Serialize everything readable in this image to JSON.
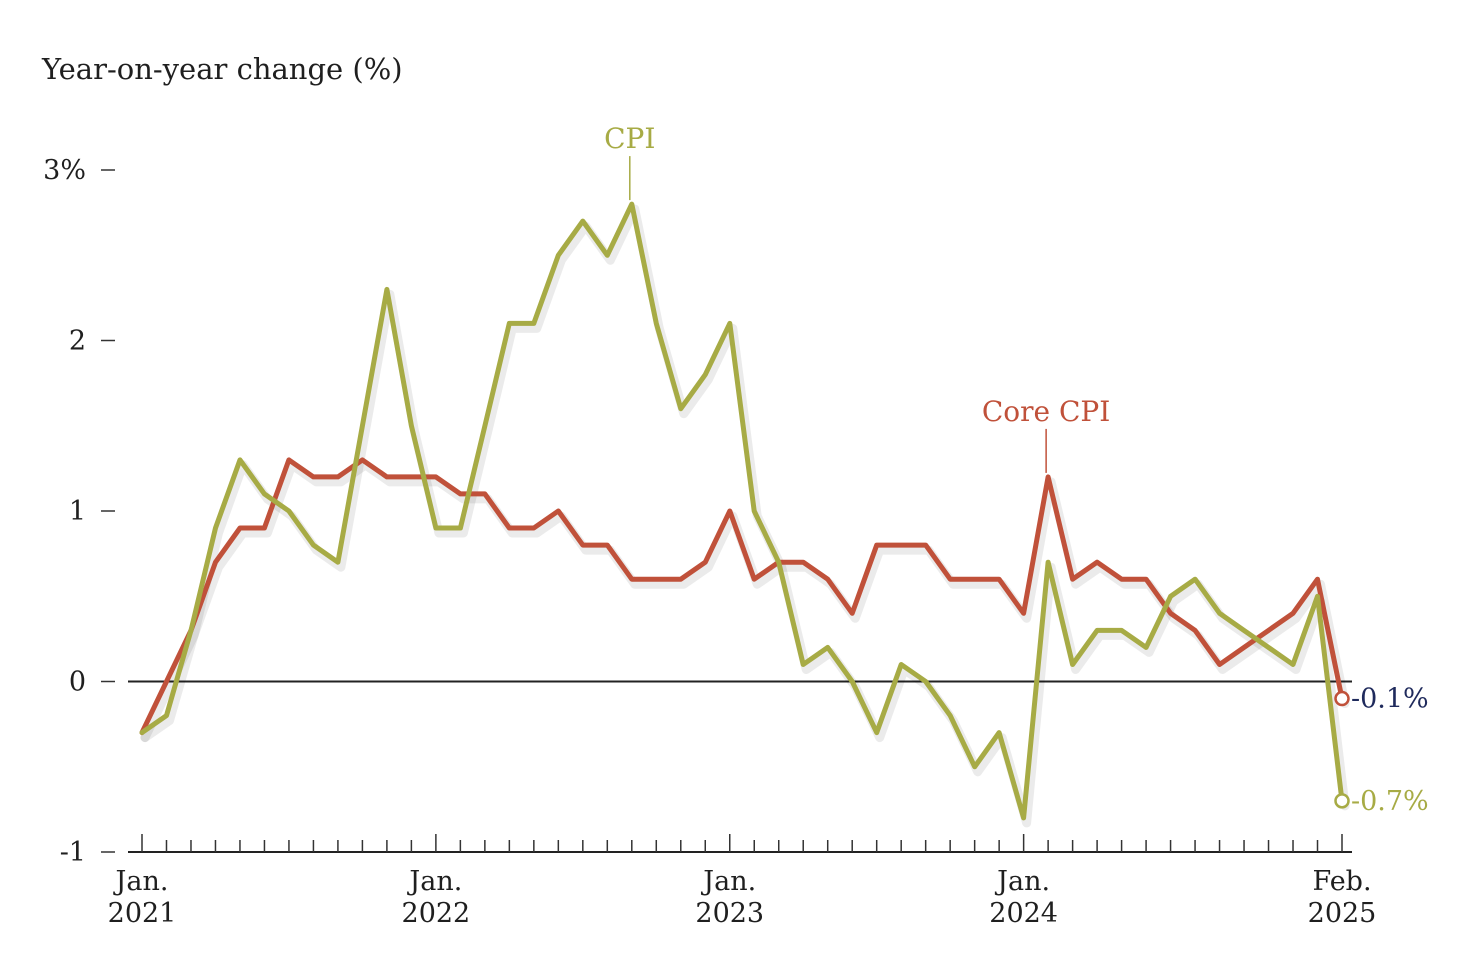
{
  "chart_data": {
    "type": "line",
    "ylabel": "Year-on-year change (%)",
    "ylim": [
      -1,
      3
    ],
    "yticks": [
      {
        "value": 3,
        "label": "3%"
      },
      {
        "value": 2,
        "label": "2"
      },
      {
        "value": 1,
        "label": "1"
      },
      {
        "value": 0,
        "label": "0"
      },
      {
        "value": -1,
        "label": "-1"
      }
    ],
    "xticks": [
      {
        "index": 0,
        "line1": "Jan.",
        "line2": "2021"
      },
      {
        "index": 12,
        "line1": "Jan.",
        "line2": "2022"
      },
      {
        "index": 24,
        "line1": "Jan.",
        "line2": "2023"
      },
      {
        "index": 36,
        "line1": "Jan.",
        "line2": "2024"
      },
      {
        "index": 49,
        "line1": "Feb.",
        "line2": "2025"
      }
    ],
    "x_start": "Jan. 2021",
    "x_end": "Feb. 2025",
    "series": [
      {
        "name": "CPI",
        "color": "#a7ab45",
        "end_label": "-0.7%",
        "values": [
          -0.3,
          -0.2,
          0.3,
          0.9,
          1.3,
          1.1,
          1.0,
          0.8,
          0.7,
          1.5,
          2.3,
          1.5,
          0.9,
          0.9,
          1.5,
          2.1,
          2.1,
          2.5,
          2.7,
          2.5,
          2.8,
          2.1,
          1.6,
          1.8,
          2.1,
          1.0,
          0.7,
          0.1,
          0.2,
          0.0,
          -0.3,
          0.1,
          0.0,
          -0.2,
          -0.5,
          -0.3,
          -0.8,
          0.7,
          0.1,
          0.3,
          0.3,
          0.2,
          0.5,
          0.6,
          0.4,
          0.3,
          0.2,
          0.1,
          0.5,
          -0.7
        ]
      },
      {
        "name": "Core CPI",
        "color": "#c0513a",
        "end_label": "-0.1%",
        "end_label_color": "#1f2a5c",
        "values": [
          -0.3,
          0.0,
          0.3,
          0.7,
          0.9,
          0.9,
          1.3,
          1.2,
          1.2,
          1.3,
          1.2,
          1.2,
          1.2,
          1.1,
          1.1,
          0.9,
          0.9,
          1.0,
          0.8,
          0.8,
          0.6,
          0.6,
          0.6,
          0.7,
          1.0,
          0.6,
          0.7,
          0.7,
          0.6,
          0.4,
          0.8,
          0.8,
          0.8,
          0.6,
          0.6,
          0.6,
          0.4,
          1.2,
          0.6,
          0.7,
          0.6,
          0.6,
          0.4,
          0.3,
          0.1,
          0.2,
          0.3,
          0.4,
          0.6,
          -0.1
        ]
      }
    ],
    "annotations": [
      {
        "series": "CPI",
        "text": "CPI",
        "index": 20
      },
      {
        "series": "Core CPI",
        "text": "Core CPI",
        "index": 37
      }
    ],
    "grid": false
  }
}
